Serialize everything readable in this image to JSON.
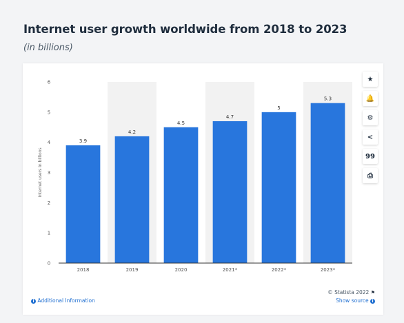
{
  "header": {
    "title": "Internet user growth worldwide from 2018 to 2023",
    "subtitle": "(in billions)"
  },
  "toolbar": {
    "icons": [
      "star-icon",
      "bell-icon",
      "gear-icon",
      "share-icon",
      "quote-icon",
      "print-icon"
    ],
    "glyphs": [
      "★",
      "🔔",
      "⚙",
      "<",
      "99",
      "⎙"
    ]
  },
  "footer": {
    "additional_info": "Additional Information",
    "copyright": "© Statista 2022",
    "show_source": "Show source",
    "info_glyph": "i"
  },
  "colors": {
    "bar": "#2876dd",
    "band": "#f2f2f2",
    "link": "#1f6fd1"
  },
  "chart_data": {
    "type": "bar",
    "categories": [
      "2018",
      "2019",
      "2020",
      "2021*",
      "2022*",
      "2023*"
    ],
    "values": [
      3.9,
      4.2,
      4.5,
      4.7,
      5,
      5.3
    ],
    "value_labels": [
      "3.9",
      "4.2",
      "4.5",
      "4.7",
      "5",
      "5.3"
    ],
    "ylabel": "Internet users in billions",
    "ylim": [
      0,
      6
    ],
    "yticks": [
      0,
      1,
      2,
      3,
      4,
      5,
      6
    ],
    "grid": false,
    "alternating_bands": true
  }
}
